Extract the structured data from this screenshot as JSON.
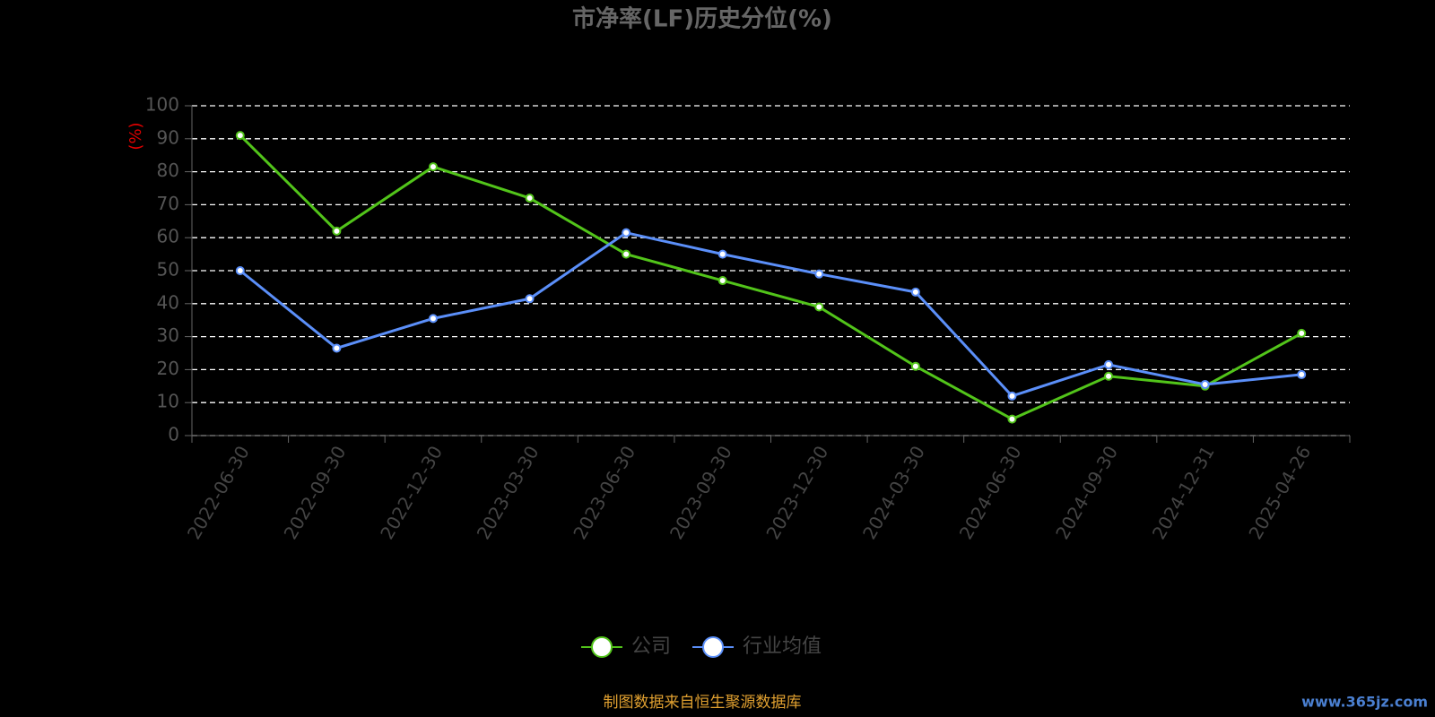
{
  "chart_data": {
    "type": "line",
    "title": "市净率(LF)历史分位(%)",
    "y_label": "(%)",
    "categories": [
      "2022-06-30",
      "2022-09-30",
      "2022-12-30",
      "2023-03-30",
      "2023-06-30",
      "2023-09-30",
      "2023-12-30",
      "2024-03-30",
      "2024-06-30",
      "2024-09-30",
      "2024-12-31",
      "2025-04-26"
    ],
    "series": [
      {
        "name": "公司",
        "color": "#52c41a",
        "values": [
          91,
          62,
          81.5,
          72,
          55,
          47,
          39,
          21,
          5,
          18,
          15,
          31
        ]
      },
      {
        "name": "行业均值",
        "color": "#5b8ff9",
        "values": [
          50,
          26.5,
          35.5,
          41.5,
          61.5,
          55,
          49,
          43.5,
          12,
          21.5,
          15.5,
          18.5
        ]
      }
    ],
    "ylim": [
      0,
      100
    ],
    "yticks": [
      0,
      10,
      20,
      30,
      40,
      50,
      60,
      70,
      80,
      90,
      100
    ],
    "grid": true,
    "legend": "bottom",
    "source": "制图数据来自恒生聚源数据库",
    "watermark": "www.365jz.com"
  }
}
